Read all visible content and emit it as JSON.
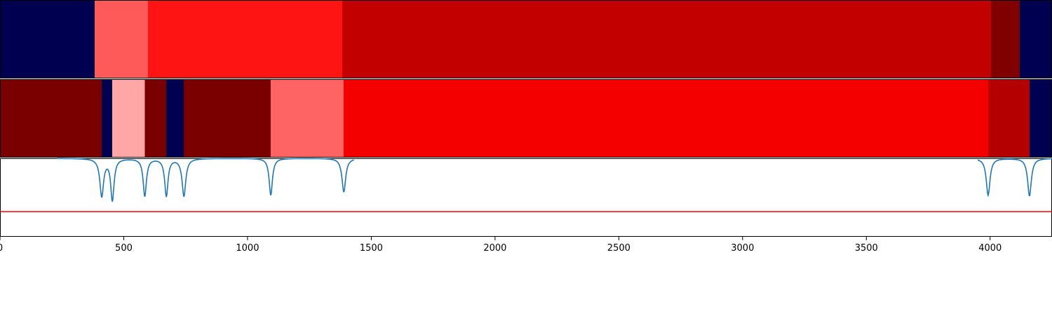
{
  "chart_data": {
    "type": "heatmap",
    "x_range": [
      0,
      4250
    ],
    "x_ticks": [
      0,
      500,
      1000,
      1500,
      2000,
      2500,
      3000,
      3500,
      4000
    ],
    "x_tick_labels": [
      "0",
      "500",
      "1000",
      "1500",
      "2000",
      "2500",
      "3000",
      "3500",
      "4000"
    ],
    "grid": false,
    "bands": [
      {
        "segments": [
          {
            "start": 0,
            "end": 383,
            "color": "#000050"
          },
          {
            "start": 383,
            "end": 598,
            "color": "#ff5a5a"
          },
          {
            "start": 598,
            "end": 1383,
            "color": "#ff1414"
          },
          {
            "start": 1383,
            "end": 4004,
            "color": "#c20000"
          },
          {
            "start": 4004,
            "end": 4120,
            "color": "#800000"
          },
          {
            "start": 4120,
            "end": 4250,
            "color": "#000050"
          }
        ]
      },
      {
        "segments": [
          {
            "start": 0,
            "end": 411,
            "color": "#7a0000"
          },
          {
            "start": 411,
            "end": 454,
            "color": "#000050"
          },
          {
            "start": 454,
            "end": 585,
            "color": "#ffa6a6"
          },
          {
            "start": 585,
            "end": 672,
            "color": "#7a0000"
          },
          {
            "start": 672,
            "end": 743,
            "color": "#000050"
          },
          {
            "start": 743,
            "end": 1094,
            "color": "#7a0000"
          },
          {
            "start": 1094,
            "end": 1389,
            "color": "#ff6464"
          },
          {
            "start": 1389,
            "end": 3992,
            "color": "#f50000"
          },
          {
            "start": 3992,
            "end": 4159,
            "color": "#b40000"
          },
          {
            "start": 4159,
            "end": 4250,
            "color": "#000050"
          }
        ]
      }
    ],
    "spectrum": {
      "color": "#1f77b4",
      "y_range": [
        0,
        1
      ],
      "threshold": {
        "y": 0.32,
        "color": "#ff0000"
      },
      "baseline_y": 1.0,
      "peaks": [
        {
          "x": 411,
          "depth": 0.48,
          "width": 9
        },
        {
          "x": 454,
          "depth": 0.53,
          "width": 8
        },
        {
          "x": 585,
          "depth": 0.48,
          "width": 8
        },
        {
          "x": 672,
          "depth": 0.48,
          "width": 8
        },
        {
          "x": 743,
          "depth": 0.48,
          "width": 9
        },
        {
          "x": 1094,
          "depth": 0.47,
          "width": 8
        },
        {
          "x": 1389,
          "depth": 0.43,
          "width": 9
        },
        {
          "x": 3992,
          "depth": 0.47,
          "width": 9
        },
        {
          "x": 4159,
          "depth": 0.48,
          "width": 9
        }
      ]
    }
  }
}
